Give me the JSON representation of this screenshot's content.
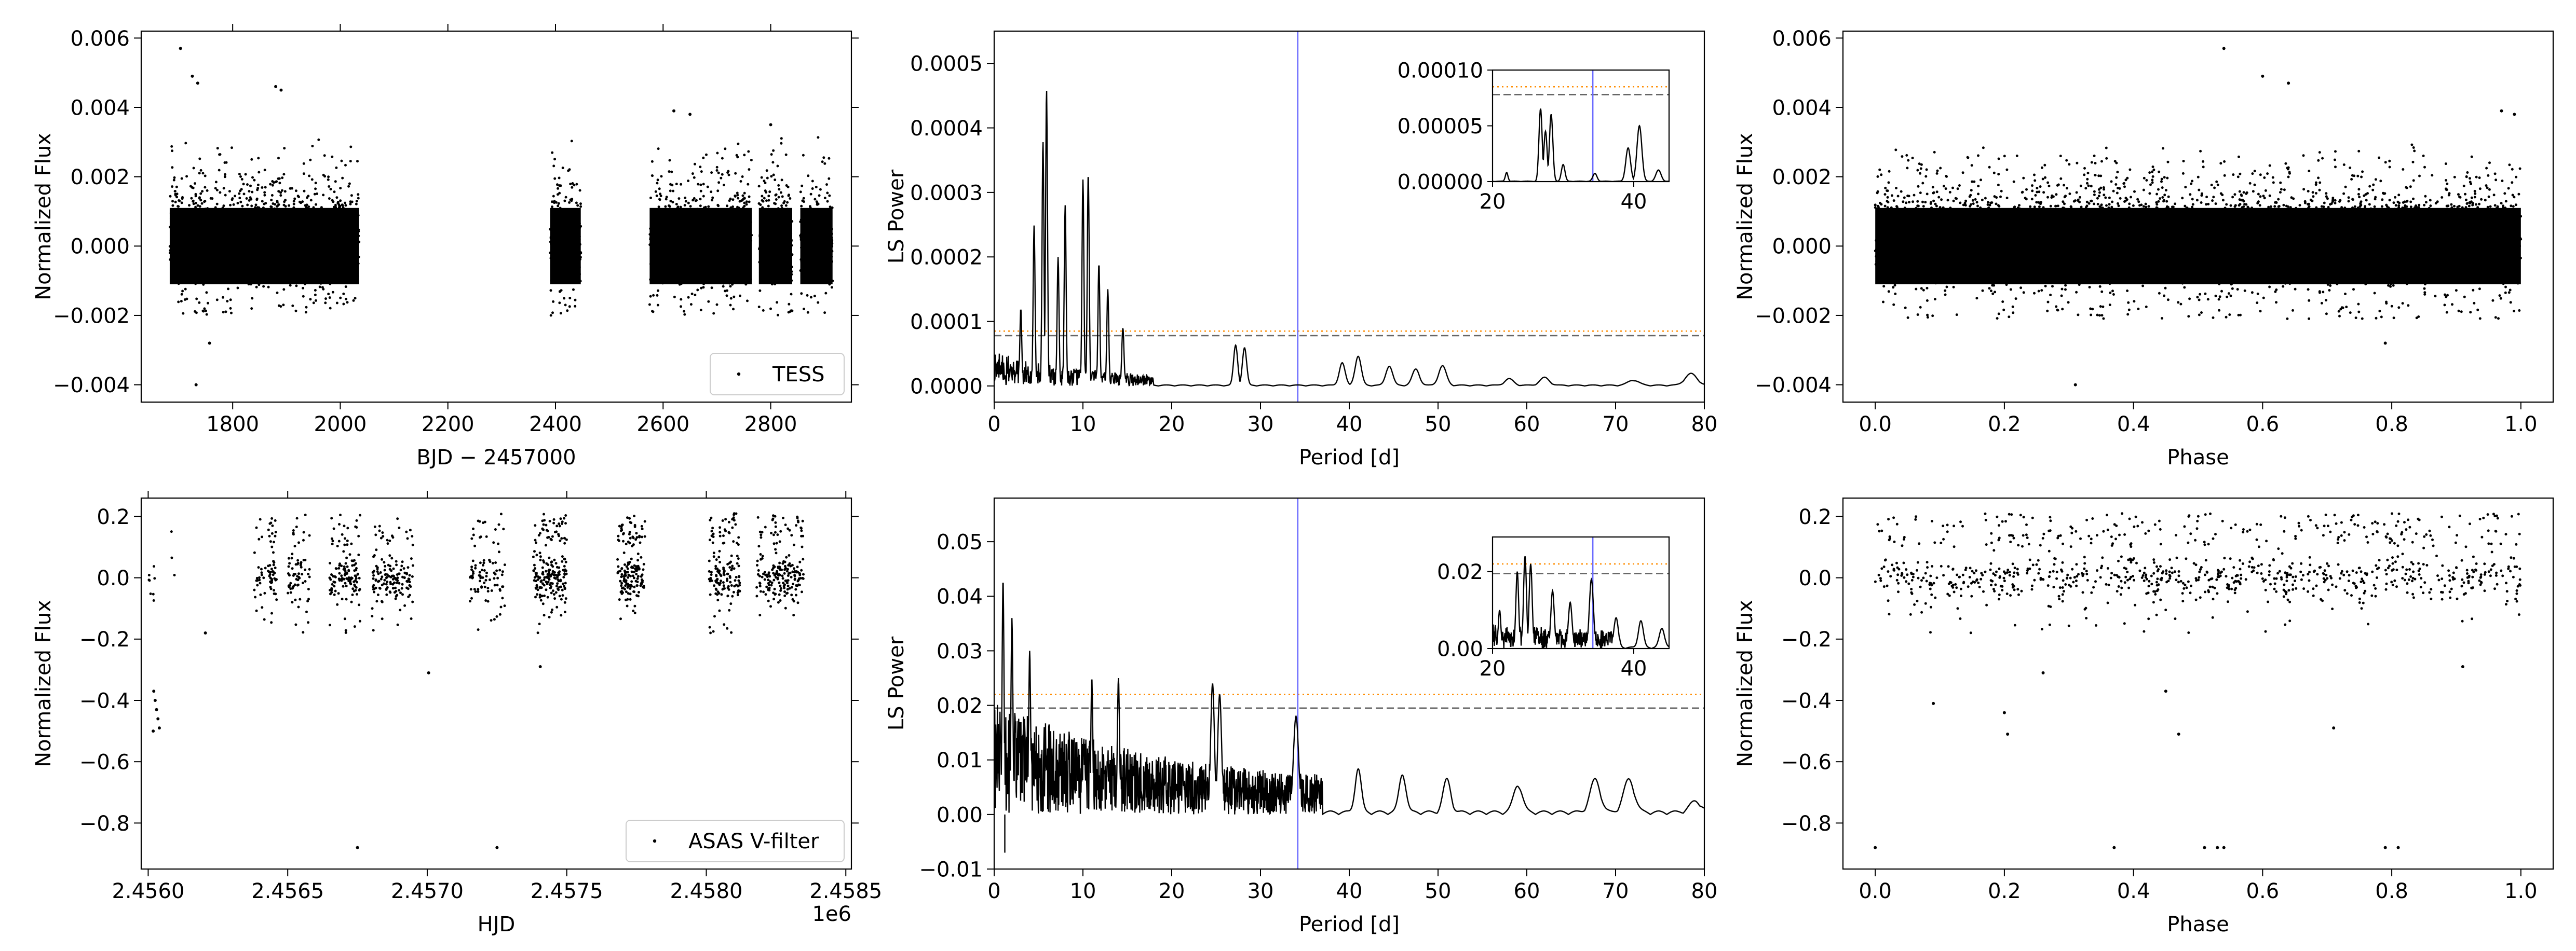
{
  "chart_data": [
    {
      "id": "tess-lightcurve",
      "type": "scatter",
      "xlim": [
        1630,
        2950
      ],
      "ylim": [
        -0.0045,
        0.0062
      ],
      "xticks": [
        1800,
        2000,
        2200,
        2400,
        2600,
        2800
      ],
      "xtick_labels": [
        "1800",
        "2000",
        "2200",
        "2400",
        "2600",
        "2800"
      ],
      "yticks": [
        -0.004,
        -0.002,
        0.0,
        0.002,
        0.004,
        0.006
      ],
      "ytick_labels": [
        "−0.004",
        "−0.002",
        "0.000",
        "0.002",
        "0.004",
        "0.006"
      ],
      "xlabel": "BJD − 2457000",
      "ylabel": "Normalized Flux",
      "legend": {
        "label": "TESS",
        "position": "lower-right"
      },
      "segments": [
        [
          1683,
          2035
        ],
        [
          2390,
          2447
        ],
        [
          2575,
          2765
        ],
        [
          2778,
          2840
        ],
        [
          2855,
          2915
        ]
      ],
      "core_sd": 0.00055,
      "core_clip": 0.0011,
      "core_points": 2600,
      "scatter_points": 650,
      "scatter_up": 0.0032,
      "scatter_down": 0.0009,
      "outliers": [
        [
          1703,
          0.0057
        ],
        [
          1725,
          0.0049
        ],
        [
          1735,
          0.0047
        ],
        [
          1732,
          -0.004
        ],
        [
          1757,
          -0.0028
        ],
        [
          1880,
          0.0046
        ],
        [
          1890,
          0.0045
        ],
        [
          2620,
          0.0039
        ],
        [
          2650,
          0.0038
        ],
        [
          2800,
          0.0035
        ]
      ]
    },
    {
      "id": "tess-periodogram",
      "type": "line",
      "xlim": [
        0,
        80
      ],
      "ylim": [
        -2.5e-05,
        0.00055
      ],
      "xticks": [
        0,
        10,
        20,
        30,
        40,
        50,
        60,
        70,
        80
      ],
      "xtick_labels": [
        "0",
        "10",
        "20",
        "30",
        "40",
        "50",
        "60",
        "70",
        "80"
      ],
      "yticks": [
        0,
        0.0001,
        0.0002,
        0.0003,
        0.0004,
        0.0005
      ],
      "ytick_labels": [
        "0.0000",
        "0.0001",
        "0.0002",
        "0.0003",
        "0.0004",
        "0.0005"
      ],
      "xlabel": "Period [d]",
      "ylabel": "LS Power",
      "fap_high": 8.5e-05,
      "fap_low": 7.8e-05,
      "marked_period": 34.2,
      "noise_amp": 4e-05,
      "noise_end": 18,
      "peaks": [
        [
          3.0,
          0.00012
        ],
        [
          4.5,
          0.00025
        ],
        [
          5.5,
          0.00038
        ],
        [
          5.9,
          0.00046
        ],
        [
          7.2,
          0.0002
        ],
        [
          8.0,
          0.00028
        ],
        [
          10.0,
          0.00032
        ],
        [
          10.6,
          0.00033
        ],
        [
          11.8,
          0.00019
        ],
        [
          12.8,
          0.00015
        ],
        [
          14.5,
          9e-05
        ],
        [
          27.2,
          6.2e-05
        ],
        [
          28.2,
          5.8e-05
        ],
        [
          39.2,
          3.5e-05
        ],
        [
          41.0,
          4.5e-05
        ],
        [
          44.5,
          3e-05
        ],
        [
          47.5,
          2.5e-05
        ],
        [
          50.5,
          3e-05
        ],
        [
          58.0,
          1e-05
        ],
        [
          62.0,
          1.2e-05
        ],
        [
          72.0,
          8e-06
        ],
        [
          78.5,
          1.8e-05
        ]
      ],
      "inset": {
        "xlim": [
          20,
          45
        ],
        "ylim": [
          0,
          0.0001
        ],
        "xticks": [
          20,
          40
        ],
        "xtick_labels": [
          "20",
          "40"
        ],
        "yticks": [
          0,
          5e-05,
          0.0001
        ],
        "ytick_labels": [
          "0.00000",
          "0.00005",
          "0.00010"
        ],
        "peaks": [
          [
            22.0,
            8e-06
          ],
          [
            26.8,
            6.5e-05
          ],
          [
            27.5,
            4.5e-05
          ],
          [
            28.3,
            6e-05
          ],
          [
            30.0,
            1.5e-05
          ],
          [
            34.5,
            7e-06
          ],
          [
            39.2,
            3e-05
          ],
          [
            40.8,
            5e-05
          ],
          [
            43.5,
            1e-05
          ]
        ]
      }
    },
    {
      "id": "tess-phase",
      "type": "scatter",
      "xlim": [
        -0.05,
        1.05
      ],
      "ylim": [
        -0.0045,
        0.0062
      ],
      "xticks": [
        0,
        0.2,
        0.4,
        0.6,
        0.8,
        1.0
      ],
      "xtick_labels": [
        "0.0",
        "0.2",
        "0.4",
        "0.6",
        "0.8",
        "1.0"
      ],
      "yticks": [
        -0.004,
        -0.002,
        0.0,
        0.002,
        0.004,
        0.006
      ],
      "ytick_labels": [
        "−0.004",
        "−0.002",
        "0.000",
        "0.002",
        "0.004",
        "0.006"
      ],
      "xlabel": "Phase",
      "ylabel": "Normalized Flux",
      "core_sd": 0.00055,
      "core_clip": 0.0011,
      "core_points": 3200,
      "scatter_points": 900,
      "scatter_up": 0.003,
      "scatter_down": 0.001,
      "outliers": [
        [
          0.31,
          -0.004
        ],
        [
          0.54,
          0.0057
        ],
        [
          0.6,
          0.0049
        ],
        [
          0.64,
          0.0047
        ],
        [
          0.79,
          -0.0028
        ],
        [
          0.97,
          0.0039
        ],
        [
          0.99,
          0.0038
        ]
      ]
    },
    {
      "id": "asas-lightcurve",
      "type": "scatter",
      "xlim": [
        2455975,
        2458520
      ],
      "ylim": [
        -0.95,
        0.26
      ],
      "xticks": [
        2456000,
        2456500,
        2457000,
        2457500,
        2458000,
        2458500
      ],
      "xtick_labels": [
        "2.4560",
        "2.4565",
        "2.4570",
        "2.4575",
        "2.4580",
        "2.4585"
      ],
      "offset_label": "1e6",
      "yticks": [
        -0.8,
        -0.6,
        -0.4,
        -0.2,
        0.0,
        0.2
      ],
      "ytick_labels": [
        "−0.8",
        "−0.6",
        "−0.4",
        "−0.2",
        "0.0",
        "0.2"
      ],
      "xlabel": "HJD",
      "ylabel": "Normalized Flux",
      "legend": {
        "label": "ASAS V-filter",
        "position": "lower-right"
      },
      "groups": [
        [
          2456000,
          2456030,
          8
        ],
        [
          2456080,
          2456100,
          3
        ],
        [
          2456380,
          2456420,
          25
        ],
        [
          2456430,
          2456460,
          50
        ],
        [
          2456500,
          2456580,
          70
        ],
        [
          2456650,
          2456760,
          130
        ],
        [
          2456800,
          2456950,
          150
        ],
        [
          2457150,
          2457280,
          90
        ],
        [
          2457380,
          2457500,
          190
        ],
        [
          2457680,
          2457780,
          160
        ],
        [
          2458010,
          2458120,
          150
        ],
        [
          2458180,
          2458350,
          200
        ]
      ],
      "outliers": [
        [
          2456020,
          -0.37
        ],
        [
          2456025,
          -0.4
        ],
        [
          2456030,
          -0.43
        ],
        [
          2456035,
          -0.46
        ],
        [
          2456040,
          -0.49
        ],
        [
          2456018,
          -0.5
        ],
        [
          2456205,
          -0.18
        ],
        [
          2456750,
          -0.88
        ],
        [
          2457250,
          -0.88
        ],
        [
          2457005,
          -0.31
        ],
        [
          2457405,
          -0.29
        ]
      ]
    },
    {
      "id": "asas-periodogram",
      "type": "line",
      "xlim": [
        0,
        80
      ],
      "ylim": [
        -0.01,
        0.058
      ],
      "xticks": [
        0,
        10,
        20,
        30,
        40,
        50,
        60,
        70,
        80
      ],
      "xtick_labels": [
        "0",
        "10",
        "20",
        "30",
        "40",
        "50",
        "60",
        "70",
        "80"
      ],
      "yticks": [
        -0.01,
        0.0,
        0.01,
        0.02,
        0.03,
        0.04,
        0.05
      ],
      "ytick_labels": [
        "−0.01",
        "0.00",
        "0.01",
        "0.02",
        "0.03",
        "0.04",
        "0.05"
      ],
      "xlabel": "Period [d]",
      "ylabel": "LS Power",
      "fap_high": 0.022,
      "fap_low": 0.0195,
      "marked_period": 34.2,
      "noise_amp": 0.016,
      "noise_end": 37,
      "peaks": [
        [
          1.0,
          0.043
        ],
        [
          2.0,
          0.036
        ],
        [
          4.0,
          0.03
        ],
        [
          11.0,
          0.025
        ],
        [
          14.0,
          0.025
        ],
        [
          24.6,
          0.024
        ],
        [
          25.4,
          0.022
        ],
        [
          34.0,
          0.018
        ],
        [
          41.0,
          0.008
        ],
        [
          46.0,
          0.007
        ],
        [
          51.0,
          0.006
        ],
        [
          59.0,
          0.005
        ],
        [
          67.7,
          0.006
        ],
        [
          71.5,
          0.006
        ],
        [
          79.0,
          0.002
        ]
      ],
      "inset": {
        "xlim": [
          20,
          45
        ],
        "ylim": [
          0,
          0.029
        ],
        "xticks": [
          20,
          40
        ],
        "xtick_labels": [
          "20",
          "40"
        ],
        "yticks": [
          0,
          0.02
        ],
        "ytick_labels": [
          "0.00",
          "0.02"
        ],
        "peaks": [
          [
            21.0,
            0.01
          ],
          [
            23.5,
            0.02
          ],
          [
            24.6,
            0.024
          ],
          [
            25.4,
            0.022
          ],
          [
            28.5,
            0.015
          ],
          [
            31.0,
            0.012
          ],
          [
            34.0,
            0.018
          ],
          [
            37.5,
            0.008
          ],
          [
            41.0,
            0.007
          ],
          [
            44.0,
            0.005
          ]
        ]
      }
    },
    {
      "id": "asas-phase",
      "type": "scatter",
      "xlim": [
        -0.05,
        1.05
      ],
      "ylim": [
        -0.95,
        0.26
      ],
      "xticks": [
        0,
        0.2,
        0.4,
        0.6,
        0.8,
        1.0
      ],
      "xtick_labels": [
        "0.0",
        "0.2",
        "0.4",
        "0.6",
        "0.8",
        "1.0"
      ],
      "yticks": [
        -0.8,
        -0.6,
        -0.4,
        -0.2,
        0.0,
        0.2
      ],
      "ytick_labels": [
        "−0.8",
        "−0.6",
        "−0.4",
        "−0.2",
        "0.0",
        "0.2"
      ],
      "xlabel": "Phase",
      "ylabel": "Normalized Flux",
      "points": 950,
      "outliers": [
        [
          0.0,
          -0.88
        ],
        [
          0.09,
          -0.41
        ],
        [
          0.2,
          -0.44
        ],
        [
          0.205,
          -0.51
        ],
        [
          0.26,
          -0.31
        ],
        [
          0.37,
          -0.88
        ],
        [
          0.45,
          -0.37
        ],
        [
          0.47,
          -0.51
        ],
        [
          0.51,
          -0.88
        ],
        [
          0.53,
          -0.88
        ],
        [
          0.54,
          -0.88
        ],
        [
          0.71,
          -0.49
        ],
        [
          0.79,
          -0.88
        ],
        [
          0.81,
          -0.88
        ],
        [
          0.91,
          -0.29
        ]
      ]
    }
  ]
}
